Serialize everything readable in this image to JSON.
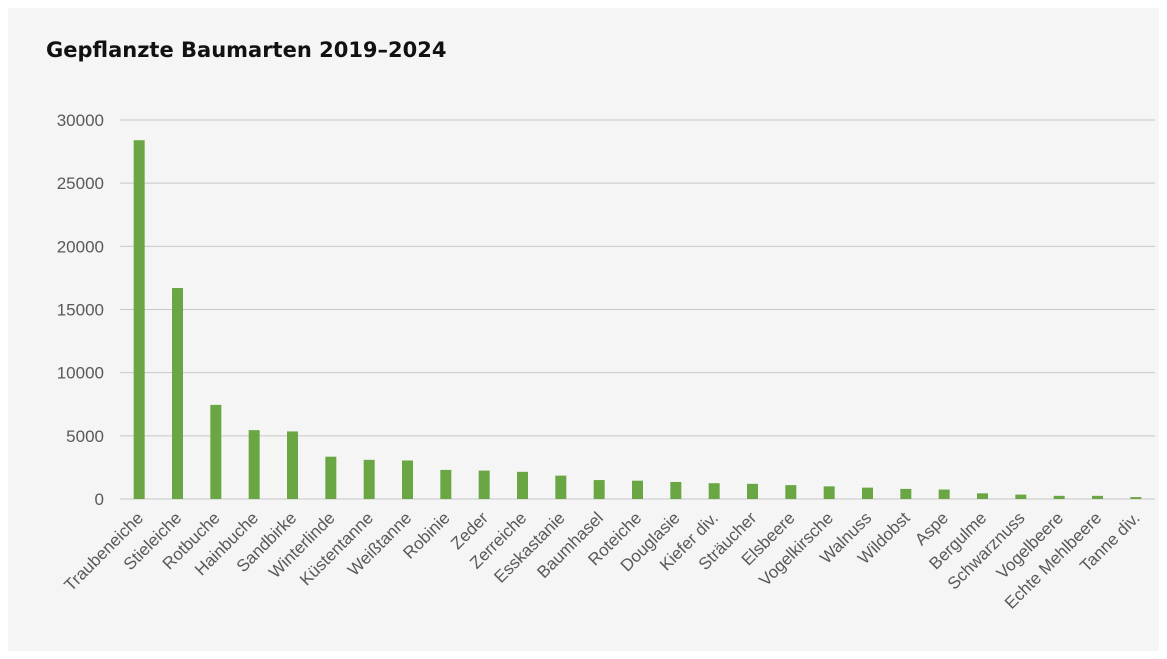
{
  "chart_data": {
    "type": "bar",
    "title": "Gepflanzte Baumarten 2019–2024",
    "xlabel": "",
    "ylabel": "",
    "ylim": [
      0,
      30000
    ],
    "yticks": [
      "0",
      "5000",
      "10000",
      "15000",
      "20000",
      "25000",
      "30000"
    ],
    "grid": true,
    "legend": "none",
    "bar_color": "#6aa744",
    "categories": [
      "Traubeneiche",
      "Stieleiche",
      "Rotbuche",
      "Hainbuche",
      "Sandbirke",
      "Winterlinde",
      "Küstentanne",
      "Weißtanne",
      "Robinie",
      "Zeder",
      "Zerreiche",
      "Esskastanie",
      "Baumhasel",
      "Roteiche",
      "Douglasie",
      "Kiefer div.",
      "Sträucher",
      "Elsbeere",
      "Vogelkirsche",
      "Walnuss",
      "Wildobst",
      "Aspe",
      "Bergulme",
      "Schwarznuss",
      "Vogelbeere",
      "Echte Mehlbeere",
      "Tanne div."
    ],
    "values": [
      28400,
      16700,
      7450,
      5450,
      5350,
      3350,
      3100,
      3050,
      2300,
      2250,
      2150,
      1850,
      1500,
      1450,
      1350,
      1250,
      1200,
      1100,
      1000,
      900,
      800,
      750,
      450,
      350,
      250,
      250,
      150
    ]
  }
}
